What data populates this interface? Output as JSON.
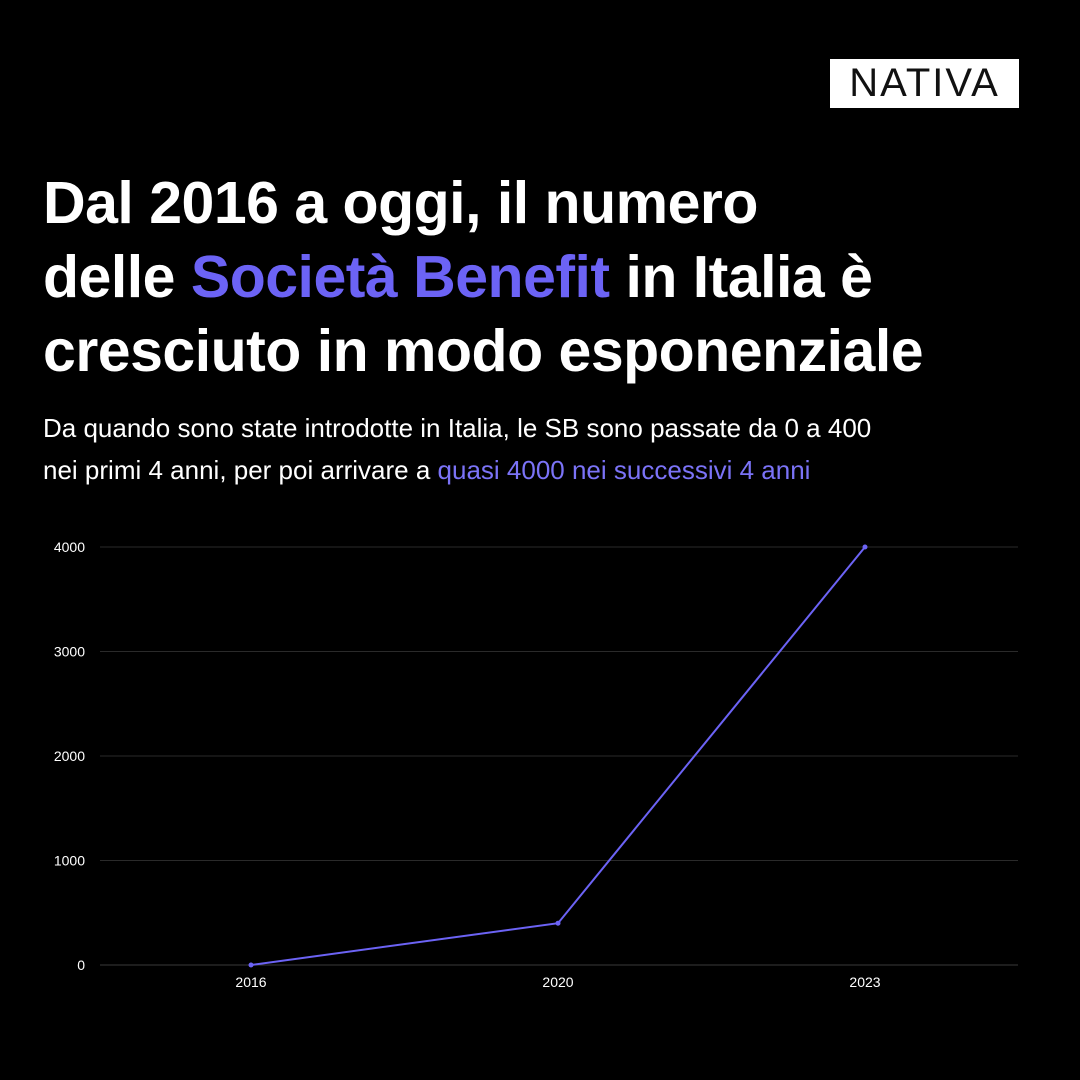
{
  "logo": {
    "text": "NATIVA"
  },
  "headline": {
    "part1": "Dal 2016 a oggi, il numero",
    "part2": "delle ",
    "accent": "Società Benefit",
    "part3": " in Italia è",
    "part4": "cresciuto in modo esponenziale"
  },
  "subtitle": {
    "line1": "Da quando sono state introdotte in Italia, le SB sono passate da 0 a 400",
    "line2_plain": "nei primi 4 anni, per poi arrivare a ",
    "line2_accent": "quasi 4000 nei successivi 4 anni"
  },
  "colors": {
    "background": "#000000",
    "accent": "#6c63f5",
    "gridline": "#2a2a2a"
  },
  "chart_data": {
    "type": "line",
    "x": [
      "2016",
      "2020",
      "2023"
    ],
    "series": [
      {
        "values": [
          0,
          400,
          4000
        ]
      }
    ],
    "yticks": [
      0,
      1000,
      2000,
      3000,
      4000
    ],
    "ylim": [
      0,
      4000
    ],
    "grid": true,
    "title": "",
    "xlabel": "",
    "ylabel": ""
  }
}
